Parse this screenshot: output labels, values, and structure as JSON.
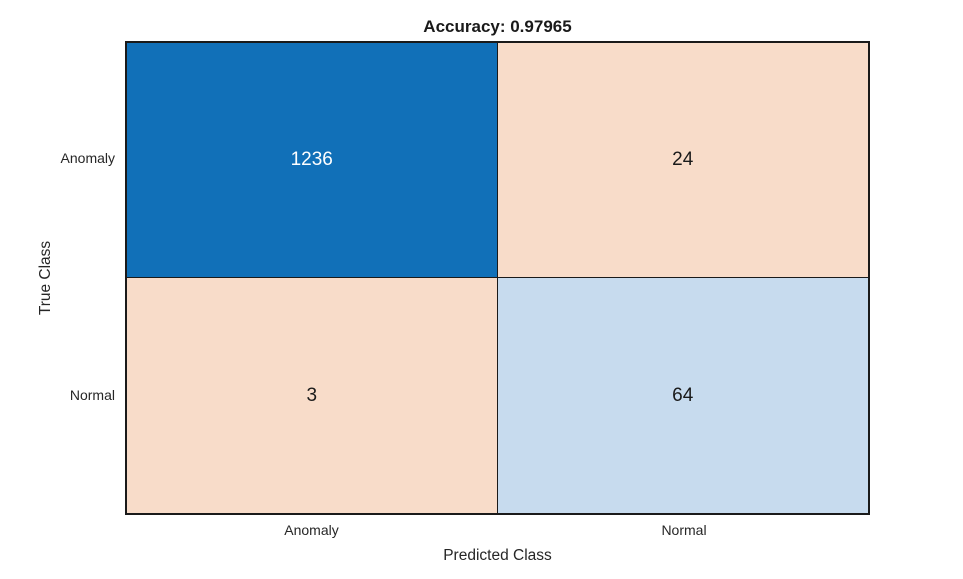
{
  "chart_data": {
    "type": "heatmap",
    "subtype": "confusion-matrix",
    "title": "Accuracy: 0.97965",
    "accuracy": 0.97965,
    "xlabel": "Predicted Class",
    "ylabel": "True Class",
    "x_categories": [
      "Anomaly",
      "Normal"
    ],
    "y_categories": [
      "Anomaly",
      "Normal"
    ],
    "matrix": [
      [
        1236,
        24
      ],
      [
        3,
        64
      ]
    ],
    "cell_colors": [
      [
        "#1170B8",
        "#F8DCC9"
      ],
      [
        "#F8DCC9",
        "#C7DBEE"
      ]
    ],
    "cell_text_colors": [
      [
        "#FFFFFF",
        "#1A1A1A"
      ],
      [
        "#1A1A1A",
        "#1A1A1A"
      ]
    ],
    "legend": "none",
    "grid": "off",
    "background": "#FFFFFF",
    "border_color": "#1A1A1A"
  }
}
